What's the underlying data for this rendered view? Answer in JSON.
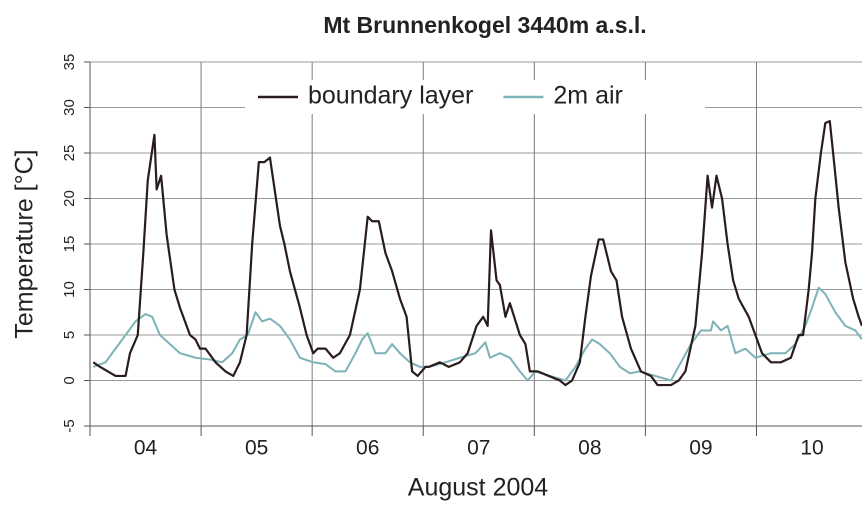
{
  "chart_data": {
    "type": "line",
    "title": "Mt Brunnenkogel 3440m a.s.l.",
    "xlabel": "August 2004",
    "ylabel": "Temperature [°C]",
    "xlim": [
      4,
      10.95
    ],
    "xticks": [
      {
        "value": 4.5,
        "label": "04"
      },
      {
        "value": 5.5,
        "label": "05"
      },
      {
        "value": 6.5,
        "label": "06"
      },
      {
        "value": 7.5,
        "label": "07"
      },
      {
        "value": 8.5,
        "label": "08"
      },
      {
        "value": 9.5,
        "label": "09"
      },
      {
        "value": 10.5,
        "label": "10"
      }
    ],
    "xminor_ticks": [
      4,
      5,
      6,
      7,
      8,
      9,
      10
    ],
    "ylim": [
      -5,
      35
    ],
    "yticks": [
      -5,
      0,
      5,
      10,
      15,
      20,
      25,
      30,
      35
    ],
    "grid": true,
    "legend": "top",
    "series": [
      {
        "name": "boundary layer",
        "color": "#2a1c1c",
        "x": [
          4.03,
          4.09,
          4.23,
          4.32,
          4.36,
          4.43,
          4.48,
          4.52,
          4.58,
          4.6,
          4.64,
          4.69,
          4.76,
          4.81,
          4.9,
          4.95,
          4.99,
          5.04,
          5.13,
          5.22,
          5.29,
          5.35,
          5.41,
          5.46,
          5.52,
          5.57,
          5.62,
          5.71,
          5.75,
          5.8,
          5.89,
          5.95,
          6.01,
          6.05,
          6.12,
          6.19,
          6.25,
          6.34,
          6.43,
          6.5,
          6.54,
          6.6,
          6.66,
          6.72,
          6.79,
          6.85,
          6.9,
          6.95,
          7.02,
          7.05,
          7.15,
          7.23,
          7.33,
          7.4,
          7.48,
          7.54,
          7.58,
          7.61,
          7.66,
          7.69,
          7.74,
          7.78,
          7.87,
          7.92,
          7.96,
          8.03,
          8.13,
          8.23,
          8.28,
          8.34,
          8.41,
          8.46,
          8.51,
          8.58,
          8.62,
          8.69,
          8.74,
          8.79,
          8.87,
          8.96,
          9.05,
          9.11,
          9.23,
          9.3,
          9.36,
          9.45,
          9.51,
          9.56,
          9.6,
          9.64,
          9.69,
          9.74,
          9.79,
          9.84,
          9.93,
          9.99,
          10.05,
          10.13,
          10.22,
          10.31,
          10.38,
          10.42,
          10.47,
          10.5,
          10.53,
          10.58,
          10.62,
          10.66,
          10.69,
          10.74,
          10.8,
          10.87,
          10.92,
          10.95
        ],
        "values": [
          2,
          1.5,
          0.5,
          0.5,
          3,
          5,
          14,
          22,
          27,
          21,
          22.5,
          16,
          10,
          8,
          5,
          4.5,
          3.5,
          3.5,
          2,
          1,
          0.5,
          2,
          5,
          15,
          24,
          24,
          24.5,
          17,
          15,
          12,
          8,
          5,
          3,
          3.5,
          3.5,
          2.5,
          3,
          5,
          10,
          18,
          17.5,
          17.5,
          14,
          12,
          9,
          7,
          1,
          0.5,
          1.5,
          1.5,
          2,
          1.5,
          2,
          3,
          6,
          7,
          6,
          16.5,
          11,
          10.5,
          7,
          8.5,
          5,
          4,
          1,
          1,
          0.5,
          0,
          -0.5,
          0,
          2,
          7,
          11.5,
          15.5,
          15.5,
          12,
          11,
          7,
          3.5,
          1,
          0.5,
          -0.5,
          -0.5,
          0,
          1,
          6,
          14,
          22.5,
          19,
          22.5,
          20,
          15,
          11,
          9,
          7,
          5,
          3,
          2,
          2,
          2.5,
          5,
          5,
          10,
          14,
          20,
          25,
          28.3,
          28.5,
          25,
          19,
          13,
          9,
          7,
          6
        ]
      },
      {
        "name": "2m air",
        "color": "#7db2b7",
        "x": [
          4.03,
          4.14,
          4.23,
          4.32,
          4.41,
          4.5,
          4.56,
          4.63,
          4.72,
          4.81,
          4.95,
          5.08,
          5.19,
          5.28,
          5.35,
          5.42,
          5.49,
          5.55,
          5.62,
          5.71,
          5.8,
          5.89,
          6.01,
          6.12,
          6.21,
          6.3,
          6.39,
          6.45,
          6.5,
          6.57,
          6.66,
          6.72,
          6.79,
          6.88,
          6.97,
          7.06,
          7.2,
          7.33,
          7.47,
          7.56,
          7.6,
          7.69,
          7.78,
          7.87,
          7.94,
          8.01,
          8.14,
          8.28,
          8.37,
          8.46,
          8.52,
          8.59,
          8.68,
          8.77,
          8.86,
          8.95,
          9.09,
          9.23,
          9.32,
          9.41,
          9.5,
          9.59,
          9.61,
          9.68,
          9.74,
          9.81,
          9.9,
          9.99,
          10.13,
          10.26,
          10.35,
          10.44,
          10.5,
          10.56,
          10.62,
          10.71,
          10.8,
          10.89,
          10.95
        ],
        "values": [
          1.5,
          2,
          3.5,
          5,
          6.5,
          7.3,
          7,
          5,
          4,
          3,
          2.5,
          2.3,
          2,
          3,
          4.5,
          5,
          7.5,
          6.5,
          6.8,
          6,
          4.5,
          2.5,
          2,
          1.8,
          1,
          1,
          3,
          4.5,
          5.2,
          3,
          3,
          4,
          3,
          2,
          1.5,
          1.5,
          2,
          2.5,
          3,
          4.2,
          2.5,
          3,
          2.5,
          1,
          0,
          1,
          0.5,
          0,
          1.5,
          3.5,
          4.5,
          4,
          3,
          1.5,
          0.8,
          1,
          0.5,
          0,
          2,
          4,
          5.5,
          5.5,
          6.5,
          5.5,
          6,
          3,
          3.5,
          2.5,
          3,
          3,
          4,
          6,
          8,
          10.2,
          9.5,
          7.5,
          6,
          5.5,
          4.5
        ]
      }
    ]
  }
}
